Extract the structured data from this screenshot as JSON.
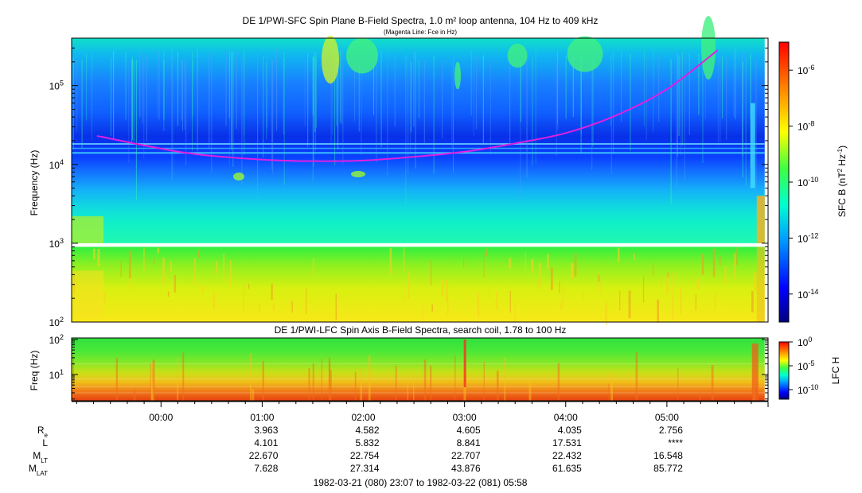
{
  "chart_data": [
    {
      "type": "heatmap",
      "title": "DE 1/PWI-SFC  Spin Plane B-Field Spectra, 1.0 m² loop antenna, 104 Hz to 409 kHz",
      "subtitle": "(Magenta Line: Fce in Hz)",
      "ylabel": "Frequency (Hz)",
      "y_scale": "log",
      "ylim": [
        100,
        400000
      ],
      "y_ticks": [
        {
          "value": 100,
          "mant": "10",
          "exp": "2"
        },
        {
          "value": 1000,
          "mant": "10",
          "exp": "3"
        },
        {
          "value": 10000,
          "mant": "10",
          "exp": "4"
        },
        {
          "value": 100000,
          "mant": "10",
          "exp": "5"
        }
      ],
      "colorbar": {
        "label": "SFC B (nT",
        "label_sup1": "2",
        "label_mid": " Hz",
        "label_sup2": "-1",
        "label_end": ")",
        "scale": "log",
        "range": [
          1e-15,
          1e-05
        ],
        "ticks": [
          {
            "value": 1e-06,
            "mant": "10",
            "exp": "-6"
          },
          {
            "value": 1e-08,
            "mant": "10",
            "exp": "-8"
          },
          {
            "value": 1e-10,
            "mant": "10",
            "exp": "-10"
          },
          {
            "value": 1e-12,
            "mant": "10",
            "exp": "-12"
          },
          {
            "value": 1e-14,
            "mant": "10",
            "exp": "-14"
          }
        ]
      },
      "data_start": "23:07",
      "data_end": "05:58",
      "gap_frequency_range_hz": [
        900,
        1000
      ],
      "fce_line": {
        "name": "Fce",
        "color": "#e020e0",
        "points": [
          {
            "t": "23:22",
            "hz": 23000
          },
          {
            "t": "00:15",
            "hz": 14000
          },
          {
            "t": "01:00",
            "hz": 11500
          },
          {
            "t": "01:30",
            "hz": 11000
          },
          {
            "t": "02:00",
            "hz": 11200
          },
          {
            "t": "02:30",
            "hz": 12500
          },
          {
            "t": "03:00",
            "hz": 14500
          },
          {
            "t": "03:30",
            "hz": 18500
          },
          {
            "t": "04:00",
            "hz": 25000
          },
          {
            "t": "04:30",
            "hz": 42000
          },
          {
            "t": "05:00",
            "hz": 90000
          },
          {
            "t": "05:30",
            "hz": 280000
          }
        ]
      }
    },
    {
      "type": "heatmap",
      "title": "DE 1/PWI-LFC  Spin Axis B-Field Spectra, search coil, 1.78 to 100 Hz",
      "ylabel": "Freq (Hz)",
      "y_scale": "log",
      "ylim": [
        1.78,
        110
      ],
      "y_ticks": [
        {
          "value": 10,
          "mant": "10",
          "exp": "1"
        },
        {
          "value": 100,
          "mant": "10",
          "exp": "2"
        }
      ],
      "colorbar": {
        "label": "LFC H",
        "scale": "log",
        "range": [
          1e-12,
          1
        ],
        "ticks": [
          {
            "value": 1,
            "mant": "10",
            "exp": "0"
          },
          {
            "value": 1e-05,
            "mant": "10",
            "exp": "-5"
          },
          {
            "value": 1e-10,
            "mant": "10",
            "exp": "-10"
          }
        ]
      }
    }
  ],
  "time_axis": {
    "range": [
      "23:07",
      "06:00"
    ],
    "ticks": [
      "00:00",
      "01:00",
      "02:00",
      "03:00",
      "04:00",
      "05:00"
    ]
  },
  "ephemeris": [
    {
      "main": "R",
      "sub": "e",
      "values": [
        "3.963",
        "4.582",
        "4.605",
        "4.035",
        "2.756"
      ]
    },
    {
      "main": "L",
      "sub": "",
      "values": [
        "4.101",
        "5.832",
        "8.841",
        "17.531",
        "****"
      ]
    },
    {
      "main": "M",
      "sub": "LT",
      "values": [
        "22.670",
        "22.754",
        "22.707",
        "22.432",
        "16.548"
      ]
    },
    {
      "main": "M",
      "sub": "LAT",
      "values": [
        "7.628",
        "27.314",
        "43.876",
        "61.635",
        "85.772"
      ]
    }
  ],
  "ephemeris_times": [
    "01:00",
    "02:00",
    "03:00",
    "04:00",
    "05:00"
  ],
  "date_range": "1982-03-21 (080) 23:07 to 1982-03-22 (081) 05:58"
}
